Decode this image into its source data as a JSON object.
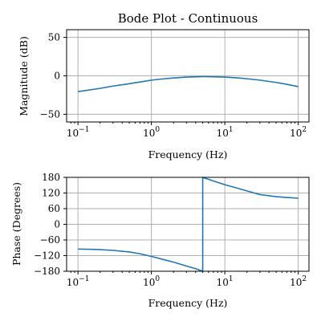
{
  "chart_data": [
    {
      "type": "line",
      "title": "Bode Plot - Continuous",
      "xlabel": "Frequency (Hz)",
      "ylabel": "Magnitude (dB)",
      "xscale": "log",
      "xlim": [
        0.07,
        140
      ],
      "ylim": [
        -60,
        60
      ],
      "xticks": [
        {
          "value": 0.1,
          "base": "10",
          "exp": "−1"
        },
        {
          "value": 1,
          "base": "10",
          "exp": "0"
        },
        {
          "value": 10,
          "base": "10",
          "exp": "1"
        },
        {
          "value": 100,
          "base": "10",
          "exp": "2"
        }
      ],
      "yticks": [
        {
          "value": 50,
          "label": "50"
        },
        {
          "value": 0,
          "label": "0"
        },
        {
          "value": -50,
          "label": "−50"
        }
      ],
      "grid": true,
      "series_color": "#1f77b4",
      "series": [
        {
          "x": [
            0.1,
            0.2,
            0.3,
            0.5,
            0.7,
            1,
            1.5,
            2,
            3,
            5,
            7,
            10,
            15,
            20,
            30,
            50,
            70,
            100
          ],
          "y": [
            -20.5,
            -16.3,
            -13.3,
            -10.2,
            -8.0,
            -5.6,
            -3.8,
            -2.8,
            -1.6,
            -1.0,
            -1.2,
            -1.6,
            -2.7,
            -3.8,
            -5.6,
            -8.6,
            -11.0,
            -14.0
          ]
        }
      ]
    },
    {
      "type": "line",
      "title": "",
      "xlabel": "Frequency (Hz)",
      "ylabel": "Phase (Degrees)",
      "xscale": "log",
      "xlim": [
        0.07,
        140
      ],
      "ylim": [
        -180,
        180
      ],
      "xticks": [
        {
          "value": 0.1,
          "base": "10",
          "exp": "−1"
        },
        {
          "value": 1,
          "base": "10",
          "exp": "0"
        },
        {
          "value": 10,
          "base": "10",
          "exp": "1"
        },
        {
          "value": 100,
          "base": "10",
          "exp": "2"
        }
      ],
      "yticks": [
        {
          "value": 180,
          "label": "180"
        },
        {
          "value": 120,
          "label": "120"
        },
        {
          "value": 60,
          "label": "60"
        },
        {
          "value": 0,
          "label": "0"
        },
        {
          "value": -60,
          "label": "−60"
        },
        {
          "value": -120,
          "label": "−120"
        },
        {
          "value": -180,
          "label": "−180"
        }
      ],
      "grid": true,
      "series_color": "#1f77b4",
      "series": [
        {
          "x": [
            0.1,
            0.15,
            0.2,
            0.3,
            0.5,
            0.7,
            1,
            1.5,
            2,
            3,
            4,
            5,
            5,
            7,
            10,
            15,
            20,
            30,
            50,
            70,
            100
          ],
          "y": [
            -95,
            -96,
            -97,
            -100,
            -106,
            -113,
            -123,
            -136,
            -145,
            -160,
            -170,
            -180,
            180,
            166,
            152,
            138,
            128,
            114,
            106,
            103,
            100
          ]
        }
      ]
    }
  ]
}
